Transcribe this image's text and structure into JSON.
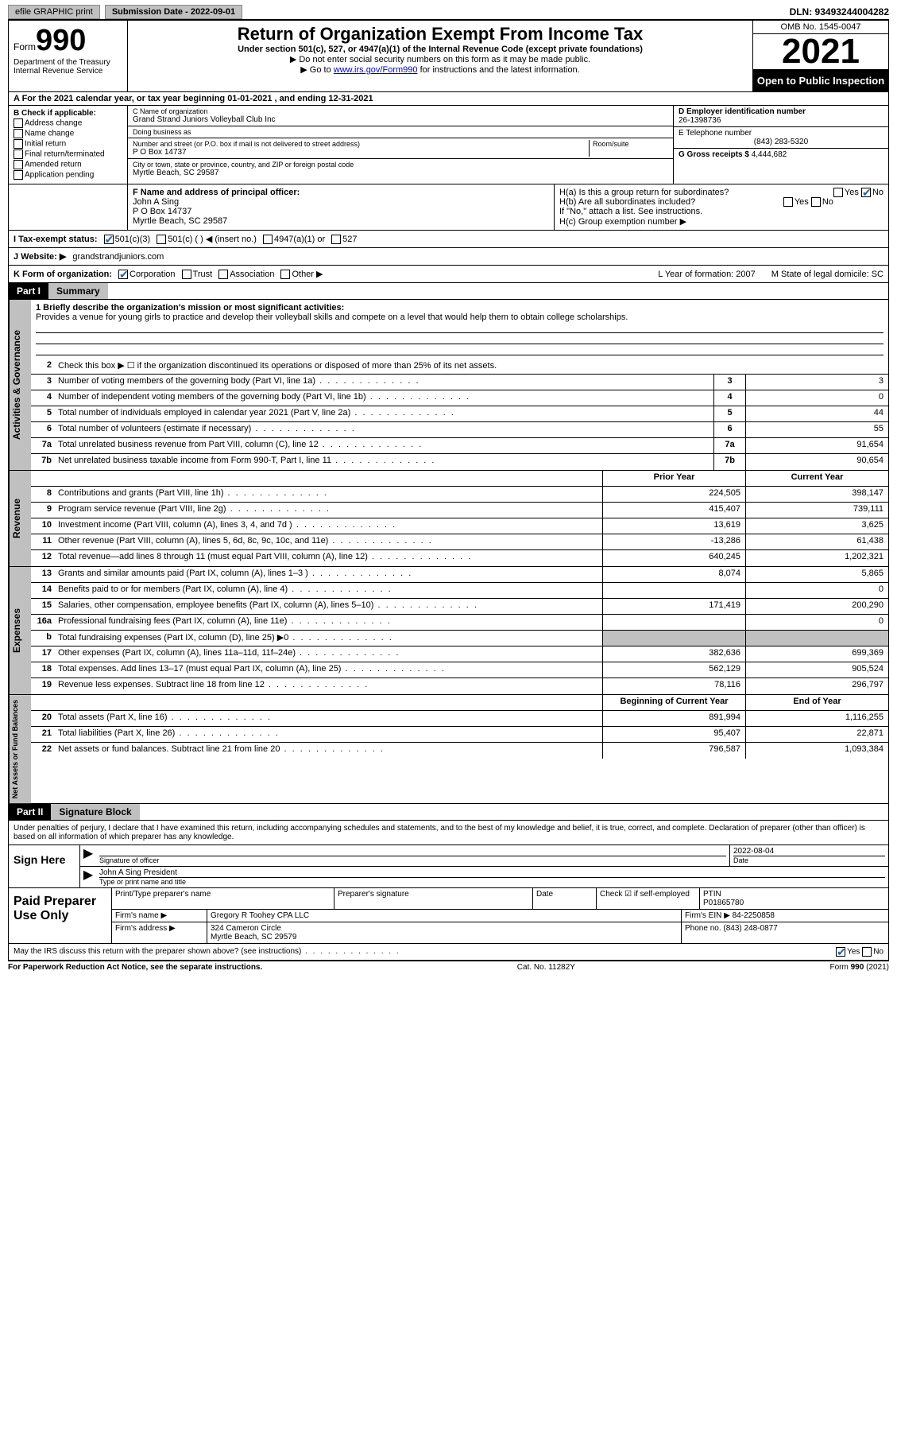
{
  "top": {
    "efile": "efile GRAPHIC print",
    "submission": "Submission Date - 2022-09-01",
    "dln": "DLN: 93493244004282"
  },
  "header": {
    "form": "Form",
    "formnum": "990",
    "title": "Return of Organization Exempt From Income Tax",
    "sub": "Under section 501(c), 527, or 4947(a)(1) of the Internal Revenue Code (except private foundations)",
    "note1": "▶ Do not enter social security numbers on this form as it may be made public.",
    "note2_prefix": "▶ Go to ",
    "note2_link": "www.irs.gov/Form990",
    "note2_suffix": " for instructions and the latest information.",
    "dept": "Department of the Treasury\nInternal Revenue Service",
    "omb": "OMB No. 1545-0047",
    "year": "2021",
    "open": "Open to Public Inspection"
  },
  "rowA": "A For the 2021 calendar year, or tax year beginning 01-01-2021   , and ending 12-31-2021",
  "boxB": {
    "title": "B Check if applicable:",
    "opts": [
      "Address change",
      "Name change",
      "Initial return",
      "Final return/terminated",
      "Amended return",
      "Application pending"
    ]
  },
  "boxC": {
    "name_label": "C Name of organization",
    "name": "Grand Strand Juniors Volleyball Club Inc",
    "dba_label": "Doing business as",
    "dba": "",
    "addr_label": "Number and street (or P.O. box if mail is not delivered to street address)",
    "room_label": "Room/suite",
    "addr": "P O Box 14737",
    "city_label": "City or town, state or province, country, and ZIP or foreign postal code",
    "city": "Myrtle Beach, SC  29587"
  },
  "boxD": {
    "ein_label": "D Employer identification number",
    "ein": "26-1398736",
    "phone_label": "E Telephone number",
    "phone": "(843) 283-5320",
    "gross_label": "G Gross receipts $",
    "gross": "4,444,682"
  },
  "boxF": {
    "label": "F Name and address of principal officer:",
    "name": "John A Sing",
    "addr1": "P O Box 14737",
    "addr2": "Myrtle Beach, SC  29587"
  },
  "boxH": {
    "ha": "H(a)  Is this a group return for subordinates?",
    "hb": "H(b)  Are all subordinates included?",
    "hb_note": "If \"No,\" attach a list. See instructions.",
    "hc": "H(c)  Group exemption number ▶"
  },
  "rowI": {
    "label": "I  Tax-exempt status:",
    "o1": "501(c)(3)",
    "o2": "501(c) (  ) ◀ (insert no.)",
    "o3": "4947(a)(1) or",
    "o4": "527"
  },
  "rowJ": {
    "label": "J  Website: ▶",
    "val": "grandstrandjuniors.com"
  },
  "rowK": {
    "label": "K Form of organization:",
    "opts": [
      "Corporation",
      "Trust",
      "Association",
      "Other ▶"
    ],
    "yof": "L Year of formation: 2007",
    "state": "M State of legal domicile: SC"
  },
  "part1": {
    "header": "Part I",
    "title": "Summary",
    "mission_label": "1   Briefly describe the organization's mission or most significant activities:",
    "mission": "Provides a venue for young girls to practice and develop their volleyball skills and compete on a level that would help them to obtain college scholarships.",
    "line2": "Check this box ▶ ☐  if the organization discontinued its operations or disposed of more than 25% of its net assets.",
    "lines_single": [
      {
        "n": "3",
        "t": "Number of voting members of the governing body (Part VI, line 1a)",
        "v": "3"
      },
      {
        "n": "4",
        "t": "Number of independent voting members of the governing body (Part VI, line 1b)",
        "v": "0"
      },
      {
        "n": "5",
        "t": "Total number of individuals employed in calendar year 2021 (Part V, line 2a)",
        "v": "44"
      },
      {
        "n": "6",
        "t": "Total number of volunteers (estimate if necessary)",
        "v": "55"
      },
      {
        "n": "7a",
        "t": "Total unrelated business revenue from Part VIII, column (C), line 12",
        "v": "91,654"
      },
      {
        "n": "7b",
        "t": "Net unrelated business taxable income from Form 990-T, Part I, line 11",
        "v": "90,654"
      }
    ],
    "col_prior": "Prior Year",
    "col_current": "Current Year",
    "revenue": [
      {
        "n": "8",
        "t": "Contributions and grants (Part VIII, line 1h)",
        "p": "224,505",
        "c": "398,147"
      },
      {
        "n": "9",
        "t": "Program service revenue (Part VIII, line 2g)",
        "p": "415,407",
        "c": "739,111"
      },
      {
        "n": "10",
        "t": "Investment income (Part VIII, column (A), lines 3, 4, and 7d )",
        "p": "13,619",
        "c": "3,625"
      },
      {
        "n": "11",
        "t": "Other revenue (Part VIII, column (A), lines 5, 6d, 8c, 9c, 10c, and 11e)",
        "p": "-13,286",
        "c": "61,438"
      },
      {
        "n": "12",
        "t": "Total revenue—add lines 8 through 11 (must equal Part VIII, column (A), line 12)",
        "p": "640,245",
        "c": "1,202,321"
      }
    ],
    "expenses": [
      {
        "n": "13",
        "t": "Grants and similar amounts paid (Part IX, column (A), lines 1–3 )",
        "p": "8,074",
        "c": "5,865"
      },
      {
        "n": "14",
        "t": "Benefits paid to or for members (Part IX, column (A), line 4)",
        "p": "",
        "c": "0"
      },
      {
        "n": "15",
        "t": "Salaries, other compensation, employee benefits (Part IX, column (A), lines 5–10)",
        "p": "171,419",
        "c": "200,290"
      },
      {
        "n": "16a",
        "t": "Professional fundraising fees (Part IX, column (A), line 11e)",
        "p": "",
        "c": "0"
      },
      {
        "n": "b",
        "t": "Total fundraising expenses (Part IX, column (D), line 25) ▶0",
        "p": "grey",
        "c": "grey"
      },
      {
        "n": "17",
        "t": "Other expenses (Part IX, column (A), lines 11a–11d, 11f–24e)",
        "p": "382,636",
        "c": "699,369"
      },
      {
        "n": "18",
        "t": "Total expenses. Add lines 13–17 (must equal Part IX, column (A), line 25)",
        "p": "562,129",
        "c": "905,524"
      },
      {
        "n": "19",
        "t": "Revenue less expenses. Subtract line 18 from line 12",
        "p": "78,116",
        "c": "296,797"
      }
    ],
    "col_begin": "Beginning of Current Year",
    "col_end": "End of Year",
    "netassets": [
      {
        "n": "20",
        "t": "Total assets (Part X, line 16)",
        "p": "891,994",
        "c": "1,116,255"
      },
      {
        "n": "21",
        "t": "Total liabilities (Part X, line 26)",
        "p": "95,407",
        "c": "22,871"
      },
      {
        "n": "22",
        "t": "Net assets or fund balances. Subtract line 21 from line 20",
        "p": "796,587",
        "c": "1,093,384"
      }
    ]
  },
  "part2": {
    "header": "Part II",
    "title": "Signature Block",
    "penalty": "Under penalties of perjury, I declare that I have examined this return, including accompanying schedules and statements, and to the best of my knowledge and belief, it is true, correct, and complete. Declaration of preparer (other than officer) is based on all information of which preparer has any knowledge.",
    "sign_here": "Sign Here",
    "sig_officer": "Signature of officer",
    "sig_date": "2022-08-04",
    "sig_name": "John A Sing  President",
    "sig_name_label": "Type or print name and title",
    "paid": "Paid Preparer Use Only",
    "prep_name_label": "Print/Type preparer's name",
    "prep_sig_label": "Preparer's signature",
    "date_label": "Date",
    "check_label": "Check ☑ if self-employed",
    "ptin_label": "PTIN",
    "ptin": "P01865780",
    "firm_name_label": "Firm's name    ▶",
    "firm_name": "Gregory R Toohey CPA LLC",
    "firm_ein_label": "Firm's EIN ▶",
    "firm_ein": "84-2250858",
    "firm_addr_label": "Firm's address ▶",
    "firm_addr": "324 Cameron Circle\nMyrtle Beach, SC  29579",
    "firm_phone_label": "Phone no.",
    "firm_phone": "(843) 248-0877",
    "discuss": "May the IRS discuss this return with the preparer shown above? (see instructions)"
  },
  "footer": {
    "pra": "For Paperwork Reduction Act Notice, see the separate instructions.",
    "cat": "Cat. No. 11282Y",
    "form": "Form 990 (2021)"
  },
  "side_labels": {
    "ag": "Activities & Governance",
    "rev": "Revenue",
    "exp": "Expenses",
    "na": "Net Assets or Fund Balances"
  }
}
